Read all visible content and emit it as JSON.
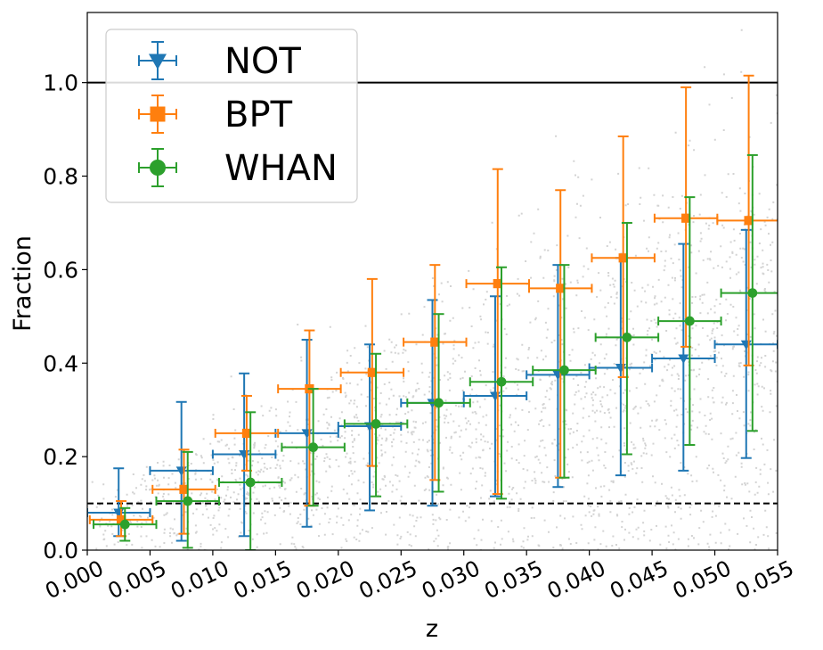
{
  "chart_data": {
    "type": "scatter",
    "title": "",
    "xlabel": "z",
    "ylabel": "Fraction",
    "xlim": [
      0.0,
      0.055
    ],
    "ylim": [
      0.0,
      1.15
    ],
    "xticks": [
      "0.000",
      "0.005",
      "0.010",
      "0.015",
      "0.020",
      "0.025",
      "0.030",
      "0.035",
      "0.040",
      "0.045",
      "0.050",
      "0.055"
    ],
    "yticks": [
      "0.0",
      "0.2",
      "0.4",
      "0.6",
      "0.8",
      "1.0"
    ],
    "grid": false,
    "legend_position": "top-left",
    "reference_lines": [
      {
        "y": 1.0,
        "style": "solid",
        "color": "#000000"
      },
      {
        "y": 0.1,
        "style": "dashed",
        "color": "#000000"
      }
    ],
    "background_scatter": {
      "color": "#d3d3d3"
    },
    "series": [
      {
        "name": "NOT",
        "color": "#1f77b4",
        "marker": "triangle-down",
        "x": [
          0.0025,
          0.0075,
          0.0125,
          0.0175,
          0.0225,
          0.0275,
          0.0325,
          0.0375,
          0.0425,
          0.0475,
          0.0525
        ],
        "y": [
          0.08,
          0.17,
          0.205,
          0.25,
          0.265,
          0.315,
          0.33,
          0.375,
          0.39,
          0.41,
          0.44
        ],
        "y_lower": [
          0.03,
          0.02,
          0.03,
          0.05,
          0.085,
          0.095,
          0.115,
          0.135,
          0.16,
          0.17,
          0.197
        ],
        "y_upper": [
          0.175,
          0.317,
          0.378,
          0.45,
          0.44,
          0.535,
          0.543,
          0.61,
          0.625,
          0.655,
          0.685
        ],
        "x_halfwidth": 0.0025
      },
      {
        "name": "BPT",
        "color": "#ff7f0e",
        "marker": "square",
        "x": [
          0.0027,
          0.0077,
          0.0127,
          0.0177,
          0.0227,
          0.0277,
          0.0327,
          0.0377,
          0.0427,
          0.0477,
          0.0527
        ],
        "y": [
          0.065,
          0.13,
          0.25,
          0.345,
          0.38,
          0.445,
          0.57,
          0.56,
          0.625,
          0.71,
          0.705
        ],
        "y_lower": [
          0.03,
          0.035,
          0.17,
          0.095,
          0.18,
          0.15,
          0.12,
          0.155,
          0.37,
          0.435,
          0.395
        ],
        "y_upper": [
          0.105,
          0.215,
          0.33,
          0.47,
          0.58,
          0.61,
          0.815,
          0.77,
          0.885,
          0.99,
          1.015
        ],
        "x_halfwidth": 0.0025
      },
      {
        "name": "WHAN",
        "color": "#2ca02c",
        "marker": "circle",
        "x": [
          0.003,
          0.008,
          0.013,
          0.018,
          0.023,
          0.028,
          0.033,
          0.038,
          0.043,
          0.048,
          0.053
        ],
        "y": [
          0.055,
          0.105,
          0.145,
          0.22,
          0.27,
          0.315,
          0.36,
          0.385,
          0.455,
          0.49,
          0.55
        ],
        "y_lower": [
          0.02,
          0.005,
          0.0,
          0.095,
          0.115,
          0.125,
          0.11,
          0.155,
          0.205,
          0.225,
          0.255
        ],
        "y_upper": [
          0.09,
          0.21,
          0.295,
          0.345,
          0.42,
          0.505,
          0.605,
          0.61,
          0.7,
          0.755,
          0.845
        ],
        "x_halfwidth": 0.0025
      }
    ]
  }
}
